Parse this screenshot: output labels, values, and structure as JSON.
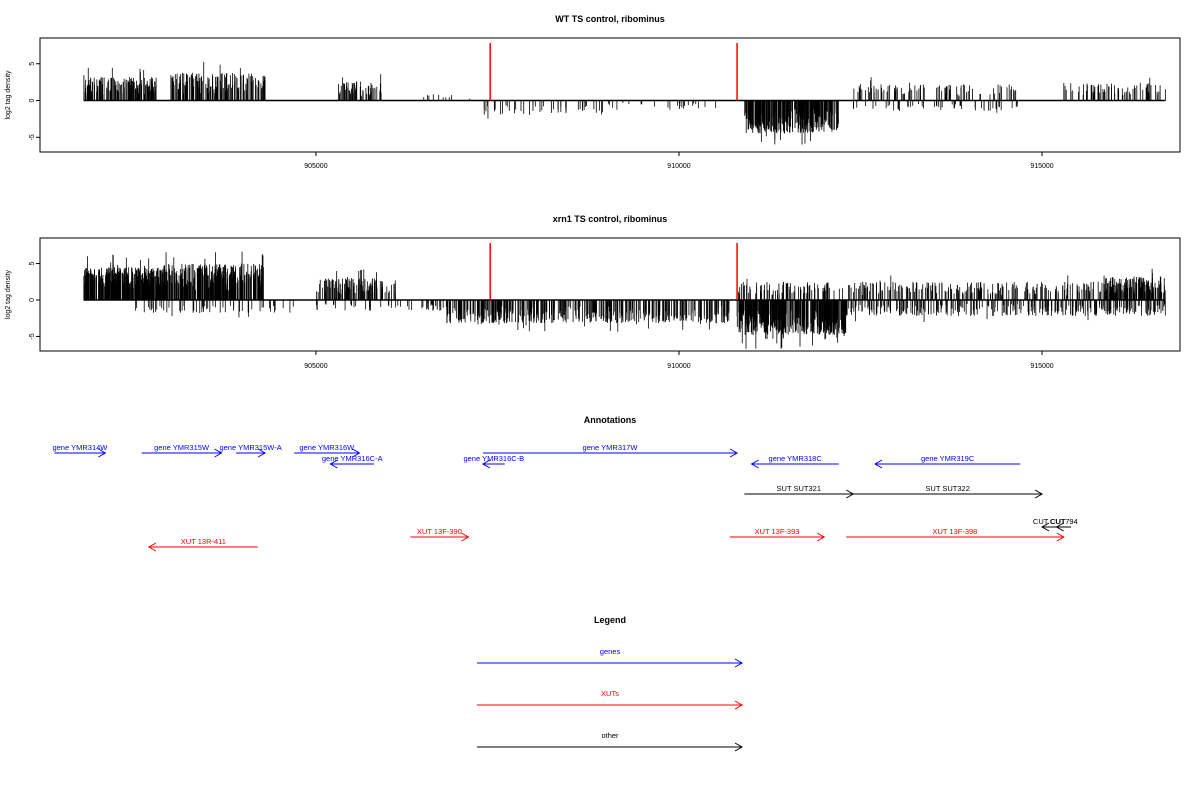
{
  "chart_data": [
    {
      "type": "bar",
      "title": "WT TS control, ribominus",
      "xlabel": "",
      "ylabel": "log2 tag density",
      "xlim": [
        901200,
        916900
      ],
      "ylim": [
        -7,
        8.5
      ],
      "xticks": [
        905000,
        910000,
        915000
      ],
      "yticks": [
        -5,
        0,
        5
      ],
      "grid": false,
      "markers": [
        907400,
        910800
      ],
      "marker_color": "#ff0000",
      "density_segments": [
        {
          "from": 901800,
          "to": 902800,
          "sign": 1,
          "amp": 3.2,
          "n": 150
        },
        {
          "from": 903000,
          "to": 904300,
          "sign": 1,
          "amp": 3.8,
          "n": 150
        },
        {
          "from": 905300,
          "to": 905900,
          "sign": 1,
          "amp": 2.6,
          "n": 60
        },
        {
          "from": 906300,
          "to": 907200,
          "sign": 1,
          "amp": 0.9,
          "n": 10
        },
        {
          "from": 907300,
          "to": 909000,
          "sign": -1,
          "amp": 2.0,
          "n": 45
        },
        {
          "from": 909000,
          "to": 910700,
          "sign": -1,
          "amp": 1.3,
          "n": 25
        },
        {
          "from": 910900,
          "to": 912200,
          "sign": -1,
          "amp": 4.5,
          "n": 260
        },
        {
          "from": 912400,
          "to": 914700,
          "sign": 1,
          "amp": 2.3,
          "n": 90
        },
        {
          "from": 912400,
          "to": 914700,
          "sign": -1,
          "amp": 1.5,
          "n": 50
        },
        {
          "from": 915300,
          "to": 916700,
          "sign": 1,
          "amp": 2.4,
          "n": 70
        }
      ]
    },
    {
      "type": "bar",
      "title": "xrn1 TS control, ribominus",
      "xlabel": "",
      "ylabel": "log2 tag density",
      "xlim": [
        901200,
        916900
      ],
      "ylim": [
        -7,
        8.5
      ],
      "xticks": [
        905000,
        910000,
        915000
      ],
      "yticks": [
        -5,
        0,
        5
      ],
      "grid": false,
      "markers": [
        907400,
        910800
      ],
      "marker_color": "#ff0000",
      "density_segments": [
        {
          "from": 901800,
          "to": 902900,
          "sign": 1,
          "amp": 4.5,
          "n": 300
        },
        {
          "from": 902900,
          "to": 904300,
          "sign": 1,
          "amp": 5.0,
          "n": 280
        },
        {
          "from": 902500,
          "to": 904700,
          "sign": -1,
          "amp": 1.8,
          "n": 60
        },
        {
          "from": 905000,
          "to": 906100,
          "sign": 1,
          "amp": 3.0,
          "n": 120
        },
        {
          "from": 905000,
          "to": 906800,
          "sign": -1,
          "amp": 1.5,
          "n": 50
        },
        {
          "from": 906800,
          "to": 910700,
          "sign": -1,
          "amp": 3.2,
          "n": 420
        },
        {
          "from": 910800,
          "to": 912300,
          "sign": -1,
          "amp": 4.8,
          "n": 380
        },
        {
          "from": 910800,
          "to": 916700,
          "sign": 1,
          "amp": 2.5,
          "n": 350
        },
        {
          "from": 912300,
          "to": 916700,
          "sign": -1,
          "amp": 2.2,
          "n": 300
        },
        {
          "from": 915800,
          "to": 916700,
          "sign": 1,
          "amp": 3.2,
          "n": 90
        }
      ]
    }
  ],
  "annotations": {
    "title": "Annotations",
    "items": [
      {
        "label": "gene YMR314W",
        "from": 901400,
        "to": 902100,
        "dir": "right",
        "color": "#0000ff",
        "row": 0
      },
      {
        "label": "gene YMR315W",
        "from": 902600,
        "to": 903700,
        "dir": "right",
        "color": "#0000ff",
        "row": 0
      },
      {
        "label": "gene YMR315W-A",
        "from": 903900,
        "to": 904300,
        "dir": "right",
        "color": "#0000ff",
        "row": 0
      },
      {
        "label": "gene YMR316W",
        "from": 904700,
        "to": 905600,
        "dir": "right",
        "color": "#0000ff",
        "row": 0
      },
      {
        "label": "gene YMR316C-A",
        "from": 905200,
        "to": 905800,
        "dir": "left",
        "color": "#0000ff",
        "row": 1
      },
      {
        "label": "gene YMR316C-B",
        "from": 907300,
        "to": 907600,
        "dir": "left",
        "color": "#0000ff",
        "row": 1
      },
      {
        "label": "gene YMR317W",
        "from": 907300,
        "to": 910800,
        "dir": "right",
        "color": "#0000ff",
        "row": 0
      },
      {
        "label": "gene YMR318C",
        "from": 911000,
        "to": 912200,
        "dir": "left",
        "color": "#0000ff",
        "row": 1
      },
      {
        "label": "gene YMR319C",
        "from": 912700,
        "to": 914700,
        "dir": "left",
        "color": "#0000ff",
        "row": 1
      },
      {
        "label": "SUT SUT321",
        "from": 910900,
        "to": 912400,
        "dir": "right",
        "color": "#000000",
        "row": 2
      },
      {
        "label": "SUT SUT322",
        "from": 912400,
        "to": 915000,
        "dir": "right",
        "color": "#000000",
        "row": 2
      },
      {
        "label": "CUT CUT",
        "from": 915000,
        "to": 915200,
        "dir": "left",
        "color": "#000000",
        "row": 3
      },
      {
        "label": "CUT794",
        "from": 915200,
        "to": 915400,
        "dir": "left",
        "color": "#000000",
        "row": 3
      },
      {
        "label": "XUT 13R-411",
        "from": 902700,
        "to": 904200,
        "dir": "left",
        "color": "#ff0000",
        "row": 4
      },
      {
        "label": "XUT 13F-390",
        "from": 906300,
        "to": 907100,
        "dir": "right",
        "color": "#ff0000",
        "row": 3.5
      },
      {
        "label": "XUT 13F-393",
        "from": 910700,
        "to": 912000,
        "dir": "right",
        "color": "#ff0000",
        "row": 3.5
      },
      {
        "label": "XUT 13F-398",
        "from": 912300,
        "to": 915300,
        "dir": "right",
        "color": "#ff0000",
        "row": 3.5
      }
    ]
  },
  "legend": {
    "title": "Legend",
    "items": [
      {
        "label": "genes",
        "color": "#0000ff"
      },
      {
        "label": "XUTs",
        "color": "#ff0000"
      },
      {
        "label": "other",
        "color": "#000000"
      }
    ]
  }
}
